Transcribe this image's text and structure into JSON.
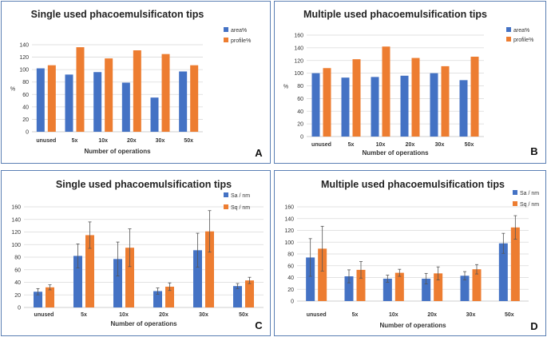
{
  "colors": {
    "blue": "#4472c4",
    "orange": "#ed7d31",
    "grid": "#d9d9d9",
    "axis": "#bfbfbf",
    "border": "#5b7fb4"
  },
  "chart_data": [
    {
      "panel_label": "A",
      "type": "bar",
      "title": "Single used phacoemulsificaton tips",
      "xlabel": "Number of operations",
      "ylabel": "%",
      "categories": [
        "unused",
        "5x",
        "10x",
        "20x",
        "30x",
        "50x"
      ],
      "ylim": [
        0,
        140
      ],
      "yticks": [
        "0",
        "20",
        "40",
        "60",
        "80",
        "100",
        "120",
        "140"
      ],
      "legend_position": "top-right",
      "series": [
        {
          "name": "area%",
          "color": "#4472c4",
          "values": [
            102,
            92,
            96,
            79,
            55,
            97
          ]
        },
        {
          "name": "profile%",
          "color": "#ed7d31",
          "values": [
            107,
            136,
            118,
            131,
            125,
            107
          ]
        }
      ]
    },
    {
      "panel_label": "B",
      "type": "bar",
      "title": "Multiple used phacoemulsification tips",
      "xlabel": "Number of operations",
      "ylabel": "%",
      "categories": [
        "unused",
        "5x",
        "10x",
        "20x",
        "30x",
        "50x"
      ],
      "ylim": [
        0,
        160
      ],
      "yticks": [
        "0",
        "20",
        "40",
        "60",
        "80",
        "100",
        "120",
        "140",
        "160"
      ],
      "legend_position": "top-right",
      "series": [
        {
          "name": "area%",
          "color": "#4472c4",
          "values": [
            100,
            93,
            94,
            96,
            100,
            89
          ]
        },
        {
          "name": "profile%",
          "color": "#ed7d31",
          "values": [
            108,
            122,
            142,
            124,
            111,
            126
          ]
        }
      ]
    },
    {
      "panel_label": "C",
      "type": "bar",
      "title": "Single used phacoemulsification tips",
      "xlabel": "Number of operations",
      "ylabel": "",
      "categories": [
        "unused",
        "5x",
        "10x",
        "20x",
        "30x",
        "50x"
      ],
      "ylim": [
        0,
        160
      ],
      "yticks": [
        "0",
        "20",
        "40",
        "60",
        "80",
        "100",
        "120",
        "140",
        "160"
      ],
      "legend_position": "top-right",
      "series": [
        {
          "name": "Sa / nm",
          "color": "#4472c4",
          "values": [
            25,
            82,
            77,
            26,
            91,
            34
          ],
          "errors": [
            5,
            19,
            27,
            5,
            27,
            4
          ]
        },
        {
          "name": "Sq / nm",
          "color": "#ed7d31",
          "values": [
            32,
            115,
            95,
            33,
            121,
            43
          ],
          "errors": [
            4,
            21,
            30,
            6,
            33,
            5
          ]
        }
      ]
    },
    {
      "panel_label": "D",
      "type": "bar",
      "title": "Multiple used phacoemulsification tips",
      "xlabel": "Number of operations",
      "ylabel": "",
      "categories": [
        "unused",
        "5x",
        "10x",
        "20x",
        "30x",
        "50x"
      ],
      "ylim": [
        0,
        160
      ],
      "yticks": [
        "0",
        "20",
        "40",
        "60",
        "80",
        "100",
        "120",
        "140",
        "160"
      ],
      "legend_position": "top-right",
      "series": [
        {
          "name": "Sa / nm",
          "color": "#4472c4",
          "values": [
            74,
            42,
            38,
            38,
            43,
            98
          ],
          "errors": [
            32,
            11,
            6,
            9,
            7,
            17
          ]
        },
        {
          "name": "Sq / nm",
          "color": "#ed7d31",
          "values": [
            89,
            53,
            48,
            47,
            54,
            125
          ],
          "errors": [
            38,
            14,
            6,
            11,
            8,
            20
          ]
        }
      ]
    }
  ]
}
